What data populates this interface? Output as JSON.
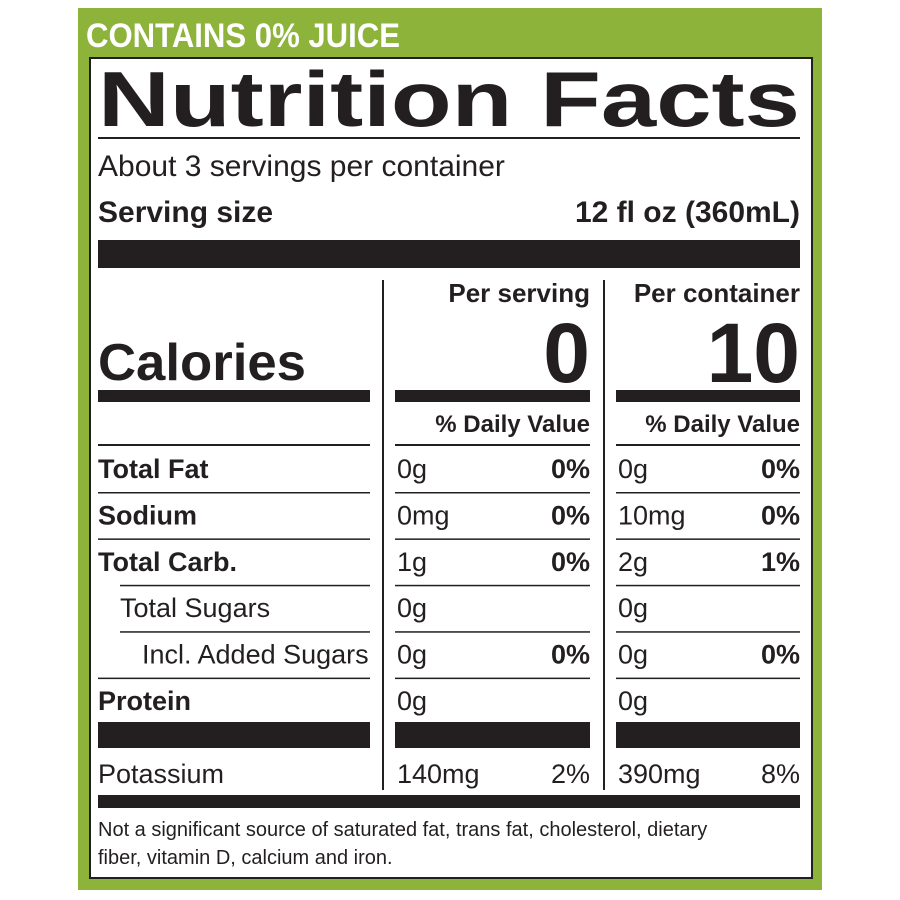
{
  "banner": "CONTAINS 0% JUICE",
  "title": "Nutrition Facts",
  "servings": "About 3 servings per container",
  "serving_size": {
    "label": "Serving size",
    "value": "12 fl oz (360mL)"
  },
  "calories_label": "Calories",
  "dv_header": "% Daily Value",
  "columns": [
    {
      "header": "Per serving",
      "calories": "0"
    },
    {
      "header": "Per container",
      "calories": "10"
    }
  ],
  "rows": [
    {
      "name": "Total Fat",
      "bold": true,
      "level": 0,
      "cells": [
        {
          "amount": "0g",
          "dv": "0%"
        },
        {
          "amount": "0g",
          "dv": "0%"
        }
      ]
    },
    {
      "name": "Sodium",
      "bold": true,
      "level": 0,
      "cells": [
        {
          "amount": "0mg",
          "dv": "0%"
        },
        {
          "amount": "10mg",
          "dv": "0%"
        }
      ]
    },
    {
      "name": "Total Carb.",
      "bold": true,
      "level": 0,
      "cells": [
        {
          "amount": "1g",
          "dv": "0%"
        },
        {
          "amount": "2g",
          "dv": "1%"
        }
      ]
    },
    {
      "name": "Total Sugars",
      "bold": false,
      "level": 1,
      "cells": [
        {
          "amount": "0g"
        },
        {
          "amount": "0g"
        }
      ]
    },
    {
      "name": "Incl. Added Sugars",
      "bold": false,
      "level": 2,
      "cells": [
        {
          "amount": "0g",
          "dv": "0%"
        },
        {
          "amount": "0g",
          "dv": "0%"
        }
      ]
    },
    {
      "name": "Protein",
      "bold": true,
      "level": 0,
      "cells": [
        {
          "amount": "0g"
        },
        {
          "amount": "0g"
        }
      ]
    }
  ],
  "minerals": [
    {
      "name": "Potassium",
      "bold": false,
      "level": 0,
      "cells": [
        {
          "amount": "140mg",
          "dv": "2%"
        },
        {
          "amount": "390mg",
          "dv": "8%"
        }
      ]
    }
  ],
  "footnote": [
    "Not a significant source of saturated fat, trans fat, cholesterol, dietary",
    "fiber, vitamin D, calcium and iron."
  ]
}
